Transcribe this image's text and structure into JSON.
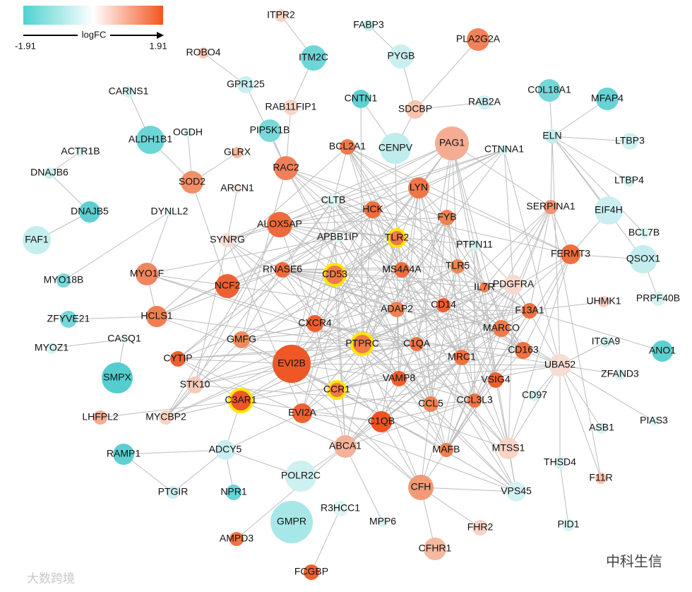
{
  "legend": {
    "title": "logFC",
    "min_label": "-1.91",
    "max_label": "1.91",
    "colors": [
      "#4fd1d1",
      "#ffffff",
      "#f2551f"
    ]
  },
  "watermarks": [
    "大数跨境",
    "中科生信"
  ],
  "nodes": [
    {
      "label": "ITPR2",
      "color": "#f8d3c4"
    },
    {
      "label": "FABP3",
      "color": "#c5eeee"
    },
    {
      "label": "ITM2C",
      "color": "#6fd6d8"
    },
    {
      "label": "PYGB",
      "color": "#c9eff0"
    },
    {
      "label": "PLA2G2A",
      "color": "#f1825a"
    },
    {
      "label": "ROBO4",
      "color": "#f7c9b6"
    },
    {
      "label": "GPR125",
      "color": "#c9eff0"
    },
    {
      "label": "CARNS1",
      "color": "#d3f2f2"
    },
    {
      "label": "RAB11FIP1",
      "color": "#f8d5c7"
    },
    {
      "label": "CNTN1",
      "color": "#5fd0d2"
    },
    {
      "label": "SDCBP",
      "color": "#f6c3ae"
    },
    {
      "label": "RAB2A",
      "color": "#cdf0f0"
    },
    {
      "label": "COL18A1",
      "color": "#76d7d8"
    },
    {
      "label": "MFAP4",
      "color": "#67d3d5"
    },
    {
      "label": "ALDH1B1",
      "color": "#6cd5d6"
    },
    {
      "label": "OGDH",
      "color": "#dcf4f4"
    },
    {
      "label": "PIP5K1B",
      "color": "#7ad8da"
    },
    {
      "label": "GLRX",
      "color": "#f5b9a1"
    },
    {
      "label": "BCL2A1",
      "color": "#f07a4d"
    },
    {
      "label": "CENPV",
      "color": "#bfeced"
    },
    {
      "label": "PAG1",
      "color": "#f4ad93"
    },
    {
      "label": "CTNNA1",
      "color": "#d8f3f3"
    },
    {
      "label": "ELN",
      "color": "#c4eeee"
    },
    {
      "label": "LTBP3",
      "color": "#cff1f1"
    },
    {
      "label": "ACTR1B",
      "color": "#d8f3f3"
    },
    {
      "label": "DNAJB6",
      "color": "#c9eff0"
    },
    {
      "label": "SOD2",
      "color": "#f19068"
    },
    {
      "label": "RAC2",
      "color": "#f0805a"
    },
    {
      "label": "ARCN1",
      "color": "#f6e4de"
    },
    {
      "label": "LYN",
      "color": "#f07648"
    },
    {
      "label": "LTBP4",
      "color": "#d3f2f2"
    },
    {
      "label": "DNAJB5",
      "color": "#5ecfd1"
    },
    {
      "label": "DYNLL2",
      "color": "#e2f6f6"
    },
    {
      "label": "CLTB",
      "color": "#dbf4f4"
    },
    {
      "label": "HCK",
      "color": "#ef6c3c"
    },
    {
      "label": "FYB",
      "color": "#f0824f"
    },
    {
      "label": "SERPINA1",
      "color": "#f29471"
    },
    {
      "label": "EIF4H",
      "color": "#cbeff0"
    },
    {
      "label": "ALOX5AP",
      "color": "#ee6a3b"
    },
    {
      "label": "FAF1",
      "color": "#c5eeee"
    },
    {
      "label": "SYNRG",
      "color": "#f8dace"
    },
    {
      "label": "APBB1IP",
      "color": "#e4f7f7"
    },
    {
      "label": "TLR2",
      "color": "#f07a4a"
    },
    {
      "label": "PTPN11",
      "color": "#d3f2f2"
    },
    {
      "label": "BCL7B",
      "color": "#d8f3f3"
    },
    {
      "label": "FERMT3",
      "color": "#ef6f3e"
    },
    {
      "label": "QSOX1",
      "color": "#c3edee"
    },
    {
      "label": "MYO1F",
      "color": "#f08660"
    },
    {
      "label": "MYO18B",
      "color": "#7ad8da"
    },
    {
      "label": "NCF2",
      "color": "#ee6132"
    },
    {
      "label": "RNASE6",
      "color": "#ef6c3c"
    },
    {
      "label": "CD53",
      "color": "#f07a4a"
    },
    {
      "label": "MS4A4A",
      "color": "#ef6d3d"
    },
    {
      "label": "TLR5",
      "color": "#f08456"
    },
    {
      "label": "PDGFRA",
      "color": "#f8d9cd"
    },
    {
      "label": "IL7R",
      "color": "#f08050"
    },
    {
      "label": "UHMK1",
      "color": "#f7cfbf"
    },
    {
      "label": "PRPF40B",
      "color": "#d3f2f2"
    },
    {
      "label": "HCLS1",
      "color": "#f07e50"
    },
    {
      "label": "ZFYVE21",
      "color": "#76d7d8"
    },
    {
      "label": "CXCR4",
      "color": "#ee5d2c"
    },
    {
      "label": "ADAP2",
      "color": "#f08150"
    },
    {
      "label": "CD14",
      "color": "#ee5e2d"
    },
    {
      "label": "F13A1",
      "color": "#ef7040"
    },
    {
      "label": "MARCO",
      "color": "#f07a4a"
    },
    {
      "label": "PTPRC",
      "color": "#f07a4a"
    },
    {
      "label": "GMFG",
      "color": "#f08a5c"
    },
    {
      "label": "C1QA",
      "color": "#ef7242"
    },
    {
      "label": "CD163",
      "color": "#ef7040"
    },
    {
      "label": "ITGA9",
      "color": "#d3f2f2"
    },
    {
      "label": "CASQ1",
      "color": "#e2f6f6"
    },
    {
      "label": "MYOZ1",
      "color": "#d3f2f2"
    },
    {
      "label": "ANO1",
      "color": "#5fcfd1"
    },
    {
      "label": "CYTIP",
      "color": "#ee6030"
    },
    {
      "label": "EVI2B",
      "color": "#ee5726"
    },
    {
      "label": "MRC1",
      "color": "#ef7142"
    },
    {
      "label": "UBA52",
      "color": "#f9ddd2"
    },
    {
      "label": "SMPX",
      "color": "#55cdcf"
    },
    {
      "label": "ZFAND3",
      "color": "#d8f3f3"
    },
    {
      "label": "STK10",
      "color": "#f7cbb9"
    },
    {
      "label": "VAMP8",
      "color": "#ee5e2c"
    },
    {
      "label": "VSIG4",
      "color": "#ee5f2e"
    },
    {
      "label": "CCR1",
      "color": "#f07a4a"
    },
    {
      "label": "C3AR1",
      "color": "#ee5726"
    },
    {
      "label": "CD97",
      "color": "#d3f2f2"
    },
    {
      "label": "CCL5",
      "color": "#f08252"
    },
    {
      "label": "CCL3L3",
      "color": "#ef7444"
    },
    {
      "label": "LHFPL2",
      "color": "#f5ae92"
    },
    {
      "label": "MYCBP2",
      "color": "#f8d2c2"
    },
    {
      "label": "PIAS3",
      "color": "#dbf4f4"
    },
    {
      "label": "C1QB",
      "color": "#ee5322"
    },
    {
      "label": "EVI2A",
      "color": "#ee6231"
    },
    {
      "label": "ASB1",
      "color": "#d8f3f3"
    },
    {
      "label": "ABCA1",
      "color": "#f4b29a"
    },
    {
      "label": "MAFB",
      "color": "#f08050"
    },
    {
      "label": "MTSS1",
      "color": "#f8d4c5"
    },
    {
      "label": "RAMP1",
      "color": "#5ecfd1"
    },
    {
      "label": "ADCY5",
      "color": "#c9eff0"
    },
    {
      "label": "POLR2C",
      "color": "#cdf0f0"
    },
    {
      "label": "THSD4",
      "color": "#d8f3f3"
    },
    {
      "label": "CFH",
      "color": "#f29a78"
    },
    {
      "label": "F11R",
      "color": "#f6c1ac"
    },
    {
      "label": "NPR1",
      "color": "#67d3d5"
    },
    {
      "label": "PTGIR",
      "color": "#c9eff0"
    },
    {
      "label": "VPS45",
      "color": "#d3f2f2"
    },
    {
      "label": "R3HCC1",
      "color": "#dcf4f4"
    },
    {
      "label": "GMPR",
      "color": "#a8e7e8"
    },
    {
      "label": "MPP6",
      "color": "#d8f3f3"
    },
    {
      "label": "FHR2",
      "color": "#f8d3c4"
    },
    {
      "label": "PID1",
      "color": "#d8f3f3"
    },
    {
      "label": "AMPD3",
      "color": "#ef7444"
    },
    {
      "label": "CFHR1",
      "color": "#f5b9a1"
    },
    {
      "label": "FCGBP",
      "color": "#ee6030"
    }
  ],
  "highlighted": [
    "CD53",
    "TLR2",
    "PTPRC",
    "CCR1",
    "C3AR1"
  ]
}
